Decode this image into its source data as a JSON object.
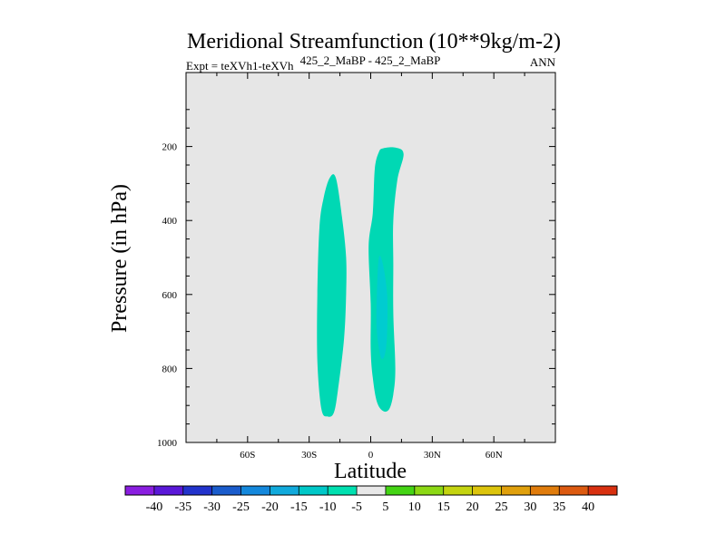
{
  "chart_data": {
    "type": "contour",
    "title": "Meridional Streamfunction (10**9kg/m-2)",
    "subtitle": "425_2_MaBP - 425_2_MaBP",
    "left_annotation": "Expt = teXVh1-teXVh",
    "right_annotation": "ANN",
    "xlabel": "Latitude",
    "ylabel": "Pressure (in hPa)",
    "xlim": [
      -90,
      90
    ],
    "ylim": [
      1000,
      0
    ],
    "x_ticks": [
      {
        "value": -60,
        "label": "60S"
      },
      {
        "value": -30,
        "label": "30S"
      },
      {
        "value": 0,
        "label": "0"
      },
      {
        "value": 30,
        "label": "30N"
      },
      {
        "value": 60,
        "label": "60N"
      }
    ],
    "y_ticks": [
      {
        "value": 200,
        "label": "200"
      },
      {
        "value": 400,
        "label": "400"
      },
      {
        "value": 600,
        "label": "600"
      },
      {
        "value": 800,
        "label": "800"
      },
      {
        "value": 1000,
        "label": "1000"
      }
    ],
    "background_color": "#e6e6e6",
    "regions": [
      {
        "name": "southern-cell",
        "level_range": [
          -10,
          -5
        ],
        "color": "#00d8b4",
        "outline": [
          [
            -20,
            285
          ],
          [
            -17,
            285
          ],
          [
            -14,
            390
          ],
          [
            -12,
            500
          ],
          [
            -12,
            600
          ],
          [
            -13,
            720
          ],
          [
            -16,
            860
          ],
          [
            -18,
            920
          ],
          [
            -21,
            930
          ],
          [
            -24,
            910
          ],
          [
            -26,
            780
          ],
          [
            -26,
            600
          ],
          [
            -25,
            420
          ],
          [
            -23,
            340
          ]
        ]
      },
      {
        "name": "northern-cell",
        "level_range": [
          -10,
          -5
        ],
        "color": "#00d8b4",
        "outline": [
          [
            6,
            205
          ],
          [
            12,
            203
          ],
          [
            16,
            220
          ],
          [
            13,
            290
          ],
          [
            11,
            400
          ],
          [
            11,
            520
          ],
          [
            11,
            650
          ],
          [
            12,
            800
          ],
          [
            11,
            870
          ],
          [
            9,
            910
          ],
          [
            6,
            915
          ],
          [
            3,
            890
          ],
          [
            1,
            825
          ],
          [
            0,
            750
          ],
          [
            0,
            625
          ],
          [
            -1,
            470
          ],
          [
            1,
            380
          ],
          [
            2,
            260
          ],
          [
            4,
            215
          ]
        ]
      },
      {
        "name": "northern-core",
        "level_range": [
          -15,
          -10
        ],
        "color": "#00ccd0",
        "outline": [
          [
            4,
            500
          ],
          [
            6,
            520
          ],
          [
            8,
            600
          ],
          [
            8,
            700
          ],
          [
            7,
            760
          ],
          [
            5,
            770
          ],
          [
            3,
            700
          ],
          [
            3,
            600
          ]
        ]
      }
    ],
    "colorbar": {
      "levels": [
        -40,
        -35,
        -30,
        -25,
        -20,
        -15,
        -10,
        -5,
        5,
        10,
        15,
        20,
        25,
        30,
        35,
        40
      ],
      "colors": [
        "#8a1ee0",
        "#5a18d8",
        "#2233cc",
        "#1a5ccc",
        "#1488dc",
        "#11aadc",
        "#00c8c8",
        "#00e0b0",
        "#e8e8e8",
        "#44d414",
        "#8cd814",
        "#c4d410",
        "#dcc40c",
        "#e0a00c",
        "#e07c0c",
        "#dc5a10",
        "#d83010"
      ]
    }
  }
}
